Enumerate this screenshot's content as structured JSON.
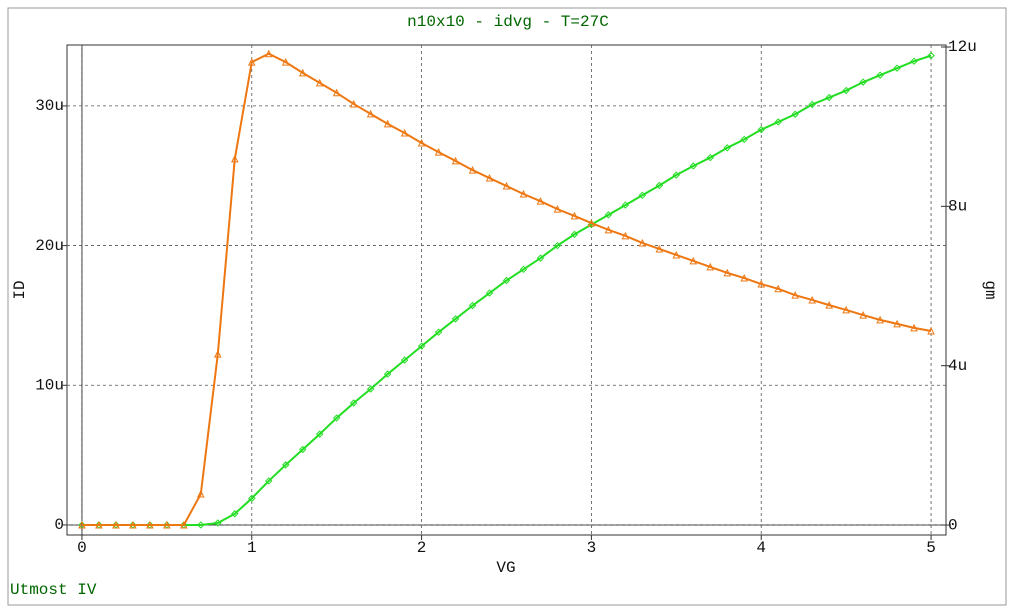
{
  "chart_data": {
    "type": "line",
    "title": "n10x10 - idvg - T=27C",
    "footnote": "Utmost IV",
    "x_label": "VG",
    "y_label": "ID",
    "y2_label": "gm",
    "grid": true,
    "x": [
      0,
      0.1,
      0.2,
      0.3,
      0.4,
      0.5,
      0.6,
      0.7,
      0.8,
      0.9,
      1,
      1.1,
      1.2,
      1.3,
      1.4,
      1.5,
      1.6,
      1.7,
      1.8,
      1.9,
      2,
      2.1,
      2.2,
      2.3,
      2.4,
      2.5,
      2.6,
      2.7,
      2.8,
      2.9,
      3,
      3.1,
      3.2,
      3.3,
      3.4,
      3.5,
      3.6,
      3.7,
      3.8,
      3.9,
      4,
      4.1,
      4.2,
      4.3,
      4.4,
      4.5,
      4.6,
      4.7,
      4.8,
      4.9,
      5
    ],
    "series": [
      {
        "color": "#22dd22",
        "marker": "diamond",
        "values": [
          0,
          0,
          0,
          0,
          0,
          0,
          0,
          0,
          1.4e-07,
          8e-07,
          1.9e-06,
          3.15e-06,
          4.3e-06,
          5.4e-06,
          6.5e-06,
          7.66e-06,
          8.73e-06,
          9.73e-06,
          1.08e-05,
          1.18e-05,
          1.28e-05,
          1.38e-05,
          1.475e-05,
          1.57e-05,
          1.66e-05,
          1.75e-05,
          1.83e-05,
          1.91e-05,
          2e-05,
          2.08e-05,
          2.15e-05,
          2.22e-05,
          2.29e-05,
          2.36e-05,
          2.43e-05,
          2.505e-05,
          2.57e-05,
          2.63e-05,
          2.7e-05,
          2.76e-05,
          2.83e-05,
          2.885e-05,
          2.94e-05,
          3.01e-05,
          3.06e-05,
          3.11e-05,
          3.17e-05,
          3.22e-05,
          3.27e-05,
          3.32e-05,
          3.36e-05
        ]
      },
      {
        "color": "#ee7711",
        "marker": "triangle",
        "axis": "y2",
        "values": [
          0,
          0,
          0,
          0,
          0,
          0,
          0,
          7.8e-07,
          4.29e-06,
          9.19e-06,
          1.162e-05,
          1.183e-05,
          1.162e-05,
          1.135e-05,
          1.11e-05,
          1.085e-05,
          1.057e-05,
          1.032e-05,
          1.007e-05,
          9.84e-06,
          9.59e-06,
          9.36e-06,
          9.14e-06,
          8.91e-06,
          8.71e-06,
          8.51e-06,
          8.31e-06,
          8.13e-06,
          7.93e-06,
          7.76e-06,
          7.58e-06,
          7.41e-06,
          7.26e-06,
          7.08e-06,
          6.93e-06,
          6.78e-06,
          6.63e-06,
          6.48e-06,
          6.33e-06,
          6.2e-06,
          6.05e-06,
          5.93e-06,
          5.77e-06,
          5.65e-06,
          5.52e-06,
          5.4e-06,
          5.27e-06,
          5.15e-06,
          5.05e-06,
          4.95e-06,
          4.87e-06
        ]
      }
    ],
    "xlim": [
      -0.088,
      5.088
    ],
    "xticks": [
      0,
      1,
      2,
      3,
      4,
      5
    ],
    "ylim": [
      -7.2e-07,
      3.436e-05
    ],
    "yticks": [
      0,
      {
        "value": 1e-05,
        "label": "10u"
      },
      {
        "value": 2e-05,
        "label": "20u"
      },
      {
        "value": 3e-05,
        "label": "30u"
      }
    ],
    "y2lim": [
      -2.5e-07,
      1.205e-05
    ],
    "y2ticks": [
      0,
      {
        "value": 4e-06,
        "label": "4u"
      },
      {
        "value": 8e-06,
        "label": "8u"
      },
      {
        "value": 1.2e-05,
        "label": "12u"
      }
    ]
  }
}
